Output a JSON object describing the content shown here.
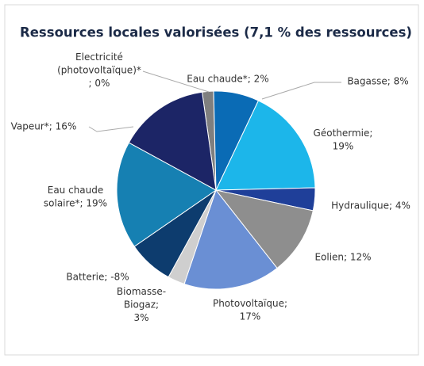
{
  "chart_data": {
    "type": "pie",
    "title": "Ressources locales valorisées (7,1 % des ressources)",
    "values": [
      0,
      2,
      8,
      19,
      4,
      12,
      17,
      3,
      -8,
      19,
      16
    ],
    "value_labels": [
      "Electricité\n(photovoltaïque)*\n; 0%",
      "Eau chaude*; 2%",
      "Bagasse; 8%",
      "Géothermie;\n19%",
      "Hydraulique; 4%",
      "Eolien; 12%",
      "Photovoltaïque;\n17%",
      "Biomasse-\nBiogaz;\n3%",
      "Batterie; -8%",
      "Eau chaude\nsolaire*; 19%",
      "Vapeur*; 16%"
    ],
    "colors": [
      "#9a9a9a",
      "#7f7f7f",
      "#0a6bb5",
      "#1cb6ea",
      "#1f3f99",
      "#8e8e8e",
      "#6a8fd4",
      "#cfcfcf",
      "#0d3c6e",
      "#1680b2",
      "#1c2566"
    ]
  }
}
